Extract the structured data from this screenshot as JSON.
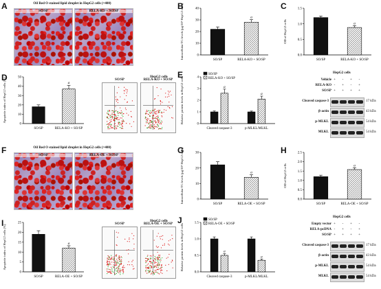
{
  "panels": [
    {
      "id": "A",
      "type": "images",
      "title": "Oil Red O stained lipid droplet in HepG2 cells (×400)",
      "images": [
        "SO/SP",
        "RELA-KO + SO/SP"
      ]
    },
    {
      "id": "B",
      "type": "bar",
      "ylabel": "Intracellular TG levels (μg/10⁶ HepG2 cells)",
      "categories": [
        "SO/SP",
        "RELA-KO + SO/SP"
      ],
      "values": [
        22,
        28
      ],
      "errors": [
        2.0,
        2.2
      ],
      "ylim": [
        0,
        40
      ],
      "yticks": [
        0,
        10,
        20,
        30,
        40
      ],
      "patterns": [
        "black",
        "hatch"
      ],
      "marks": [
        "",
        "a"
      ]
    },
    {
      "id": "C",
      "type": "bar",
      "ylabel": "OD of HepG2 cells",
      "categories": [
        "SO/SP",
        "RELA-KO + SO/SP"
      ],
      "values": [
        1.2,
        0.88
      ],
      "errors": [
        0.05,
        0.06
      ],
      "ylim": [
        0,
        1.5
      ],
      "yticks": [
        0.0,
        0.5,
        1.0,
        1.5
      ],
      "patterns": [
        "black",
        "hatch"
      ],
      "marks": [
        "",
        "a"
      ]
    },
    {
      "id": "D",
      "type": "bar",
      "ylabel": "Apoptotic index of HepG2 cells (%)",
      "categories": [
        "SO/SP",
        "RELA-KO + SO/SP"
      ],
      "values": [
        18,
        37
      ],
      "errors": [
        2.0,
        4.0
      ],
      "ylim": [
        0,
        50
      ],
      "yticks": [
        0,
        10,
        20,
        30,
        40,
        50
      ],
      "patterns": [
        "black",
        "hatch"
      ],
      "marks": [
        "",
        "a"
      ]
    },
    {
      "id": "E",
      "type": "groupbar",
      "ylabel": "Relative protein levels in HepG2 cells",
      "categories": [
        "Cleaved caspase-3",
        "p-MLKL/MLKL"
      ],
      "series": [
        {
          "name": "SO/SP",
          "values": [
            1.0,
            1.0
          ],
          "errors": [
            0.08,
            0.07
          ]
        },
        {
          "name": "RELA-KO + SO/SP",
          "values": [
            2.6,
            2.1
          ],
          "errors": [
            0.35,
            0.25
          ]
        }
      ],
      "ylim": [
        0,
        4
      ],
      "yticks": [
        0,
        1,
        2,
        3,
        4
      ],
      "marks": [
        "",
        "a"
      ]
    },
    {
      "id": "F",
      "type": "images",
      "title": "Oil Red O stained lipid droplet in HepG2 cells (×400)",
      "images": [
        "SO/SP",
        "RELA-OE + SO/SP"
      ]
    },
    {
      "id": "G",
      "type": "bar",
      "ylabel": "Intracellular TG levels (μg/10⁶ HepG2 cells)",
      "categories": [
        "SO/SP",
        "RELA-OE + SO/SP"
      ],
      "values": [
        22,
        14
      ],
      "errors": [
        2.0,
        1.6
      ],
      "ylim": [
        0,
        30
      ],
      "yticks": [
        0,
        10,
        20,
        30
      ],
      "patterns": [
        "black",
        "hatch"
      ],
      "marks": [
        "",
        "a"
      ]
    },
    {
      "id": "H",
      "type": "bar",
      "ylabel": "OD of HepG2 cells",
      "categories": [
        "SO/SP",
        "RELA-OE + SO/SP"
      ],
      "values": [
        1.2,
        1.58
      ],
      "errors": [
        0.08,
        0.1
      ],
      "ylim": [
        0,
        2.5
      ],
      "yticks": [
        0.0,
        0.5,
        1.0,
        1.5,
        2.0,
        2.5
      ],
      "patterns": [
        "black",
        "hatch"
      ],
      "marks": [
        "",
        "a"
      ]
    },
    {
      "id": "I",
      "type": "bar",
      "ylabel": "Apoptotic index of HepG2 cells (%)",
      "categories": [
        "SO/SP",
        "RELA-OE + SO/SP"
      ],
      "values": [
        19,
        12
      ],
      "errors": [
        1.8,
        1.2
      ],
      "ylim": [
        0,
        25
      ],
      "yticks": [
        0,
        5,
        10,
        15,
        20,
        25
      ],
      "patterns": [
        "black",
        "hatch"
      ],
      "marks": [
        "",
        "a"
      ]
    },
    {
      "id": "J",
      "type": "groupbar",
      "ylabel": "Relative protein levels in HepG2 cells",
      "categories": [
        "Cleaved caspase-3",
        "p-MLKL/MLKL"
      ],
      "series": [
        {
          "name": "SO/SP",
          "values": [
            1.0,
            1.0
          ],
          "errors": [
            0.06,
            0.06
          ]
        },
        {
          "name": "RELA-OE + SO/SP",
          "values": [
            0.5,
            0.35
          ],
          "errors": [
            0.05,
            0.04
          ]
        }
      ],
      "ylim": [
        0,
        1.5
      ],
      "yticks": [
        0.0,
        0.5,
        1.0,
        1.5
      ],
      "marks": [
        "",
        "a"
      ]
    }
  ],
  "flow_top": {
    "title": "HepG2 cells",
    "plots": [
      "SO/SP",
      "RELA-KO + SO/SP"
    ]
  },
  "flow_bottom": {
    "title": "HepG2 cells",
    "plots": [
      "SO/SP",
      "RELA-OE + SO/SP"
    ]
  },
  "blot_top": {
    "header": "HepG2 cells",
    "conditions": [
      "Vehicle",
      "RELA-KO",
      "SO/SP"
    ],
    "signs": [
      [
        "+",
        "-",
        "+",
        "-"
      ],
      [
        "-",
        "+",
        "-",
        "+"
      ],
      [
        "+",
        "+",
        "+",
        "+"
      ]
    ],
    "bands": [
      {
        "name": "Cleaved caspase-3",
        "kda": "17 kDa"
      },
      {
        "name": "β-actin",
        "kda": "43 kDa"
      },
      {
        "name": "p-MLKL",
        "kda": "54 kDa"
      },
      {
        "name": "MLKL",
        "kda": "54 kDa"
      }
    ]
  },
  "blot_bottom": {
    "header": "HepG2 cells",
    "conditions": [
      "Empty vector",
      "RELA-pcDNA",
      "SO/SP"
    ],
    "signs": [
      [
        "+",
        "-",
        "+",
        "-"
      ],
      [
        "-",
        "+",
        "-",
        "+"
      ],
      [
        "+",
        "+",
        "+",
        "+"
      ]
    ],
    "bands": [
      {
        "name": "Cleaved caspase-3",
        "kda": "17 kDa"
      },
      {
        "name": "β-actin",
        "kda": "43 kDa"
      },
      {
        "name": "p-MLKL",
        "kda": "54 kDa"
      },
      {
        "name": "MLKL",
        "kda": "54 kDa"
      }
    ]
  },
  "colors": {
    "black_bar": "#111111",
    "hatch_bar": "#ffffff",
    "hatch_line": "#555555"
  }
}
